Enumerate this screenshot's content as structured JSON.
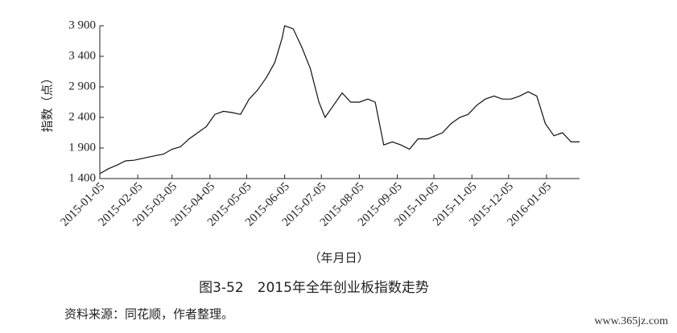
{
  "chart_data": {
    "type": "line",
    "title": "图3-52　2015年全年创业板指数走势",
    "source": "资料来源：同花顺，作者整理。",
    "watermark": "www.365jz.com",
    "y_label": "指数（点）",
    "x_label": "（年月日）",
    "color": "#111111",
    "x": [
      "2015-01-05",
      "2015-01-12",
      "2015-01-19",
      "2015-01-26",
      "2015-02-02",
      "2015-02-09",
      "2015-02-16",
      "2015-02-26",
      "2015-03-05",
      "2015-03-12",
      "2015-03-19",
      "2015-03-26",
      "2015-04-02",
      "2015-04-09",
      "2015-04-16",
      "2015-04-23",
      "2015-04-30",
      "2015-05-07",
      "2015-05-14",
      "2015-05-21",
      "2015-05-28",
      "2015-06-03",
      "2015-06-05",
      "2015-06-12",
      "2015-06-19",
      "2015-06-26",
      "2015-07-03",
      "2015-07-08",
      "2015-07-15",
      "2015-07-22",
      "2015-07-29",
      "2015-08-05",
      "2015-08-12",
      "2015-08-18",
      "2015-08-25",
      "2015-09-01",
      "2015-09-08",
      "2015-09-15",
      "2015-09-22",
      "2015-09-30",
      "2015-10-12",
      "2015-10-19",
      "2015-10-26",
      "2015-11-02",
      "2015-11-09",
      "2015-11-16",
      "2015-11-23",
      "2015-11-30",
      "2015-12-07",
      "2015-12-14",
      "2015-12-21",
      "2015-12-28",
      "2016-01-04",
      "2016-01-11",
      "2016-01-18",
      "2016-01-25",
      "2016-02-01"
    ],
    "values": [
      1480,
      1560,
      1620,
      1690,
      1700,
      1730,
      1760,
      1800,
      1880,
      1920,
      2050,
      2150,
      2250,
      2450,
      2500,
      2480,
      2450,
      2700,
      2850,
      3050,
      3300,
      3700,
      3900,
      3850,
      3550,
      3200,
      2650,
      2400,
      2600,
      2800,
      2650,
      2650,
      2700,
      2650,
      1950,
      2000,
      1950,
      1880,
      2050,
      2050,
      2150,
      2300,
      2400,
      2450,
      2600,
      2700,
      2750,
      2700,
      2700,
      2750,
      2820,
      2750,
      2300,
      2100,
      2150,
      2000,
      2000
    ],
    "xlim": [
      "2015-01-05",
      "2016-02-01"
    ],
    "xticks": [
      "2015-01-05",
      "2015-02-05",
      "2015-03-05",
      "2015-04-05",
      "2015-05-05",
      "2015-06-05",
      "2015-07-05",
      "2015-08-05",
      "2015-09-05",
      "2015-10-05",
      "2015-11-05",
      "2015-12-05",
      "2016-01-05"
    ],
    "ylim": [
      1400,
      3900
    ],
    "yticks": [
      {
        "value": 1400,
        "label": "1 400"
      },
      {
        "value": 1900,
        "label": "1 900"
      },
      {
        "value": 2400,
        "label": "2 400"
      },
      {
        "value": 2900,
        "label": "2 900"
      },
      {
        "value": 3400,
        "label": "3 400"
      },
      {
        "value": 3900,
        "label": "3 900"
      }
    ]
  }
}
